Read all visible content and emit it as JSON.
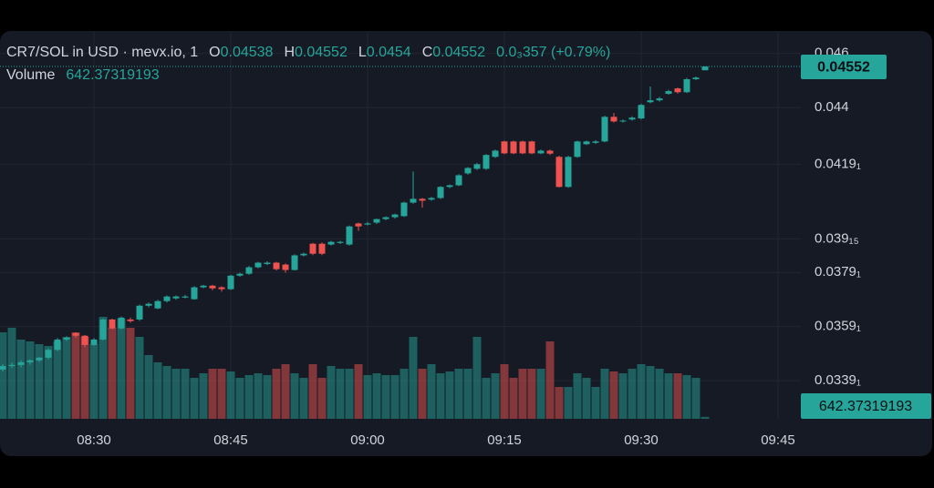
{
  "chart_data": {
    "type": "candlestick",
    "title": "CR7/SOL in USD · mevx.io, 1",
    "ohlc_letters": [
      "O",
      "H",
      "L",
      "C"
    ],
    "change_label": "0.0₃357 (+0.79%)",
    "volume_label": "Volume",
    "up_color": "#26a69a",
    "down_color": "#ef5350",
    "grid": true,
    "x": [
      "08:20",
      "08:21",
      "08:22",
      "08:23",
      "08:24",
      "08:25",
      "08:26",
      "08:27",
      "08:28",
      "08:29",
      "08:30",
      "08:31",
      "08:32",
      "08:33",
      "08:34",
      "08:35",
      "08:36",
      "08:37",
      "08:38",
      "08:39",
      "08:40",
      "08:41",
      "08:42",
      "08:43",
      "08:44",
      "08:45",
      "08:46",
      "08:47",
      "08:48",
      "08:49",
      "08:50",
      "08:51",
      "08:52",
      "08:53",
      "08:54",
      "08:55",
      "08:56",
      "08:57",
      "08:58",
      "08:59",
      "09:00",
      "09:01",
      "09:02",
      "09:03",
      "09:04",
      "09:05",
      "09:06",
      "09:07",
      "09:08",
      "09:09",
      "09:10",
      "09:11",
      "09:12",
      "09:13",
      "09:14",
      "09:15",
      "09:16",
      "09:17",
      "09:18",
      "09:19",
      "09:20",
      "09:21",
      "09:22",
      "09:23",
      "09:24",
      "09:25",
      "09:26",
      "09:27",
      "09:28",
      "09:29",
      "09:30",
      "09:31",
      "09:32",
      "09:33",
      "09:34",
      "09:35",
      "09:36",
      "09:37"
    ],
    "open": [
      0.03432,
      0.03445,
      0.03449,
      0.03459,
      0.03466,
      0.03476,
      0.03505,
      0.03543,
      0.03567,
      0.03557,
      0.03523,
      0.03543,
      0.03617,
      0.03584,
      0.03617,
      0.03617,
      0.03668,
      0.03658,
      0.03685,
      0.03695,
      0.03698,
      0.03692,
      0.03736,
      0.03742,
      0.03736,
      0.03729,
      0.03779,
      0.03786,
      0.0381,
      0.03822,
      0.03827,
      0.0382,
      0.038,
      0.03854,
      0.03897,
      0.03897,
      0.03894,
      0.039,
      0.03894,
      0.03972,
      0.03968,
      0.03975,
      0.03988,
      0.03995,
      0.03999,
      0.04049,
      0.04063,
      0.0406,
      0.04066,
      0.04107,
      0.04113,
      0.04157,
      0.04174,
      0.04174,
      0.04218,
      0.04275,
      0.04275,
      0.04275,
      0.04275,
      0.04231,
      0.04241,
      0.04218,
      0.04107,
      0.04218,
      0.04265,
      0.0427,
      0.04275,
      0.04366,
      0.04349,
      0.04356,
      0.0436,
      0.0442,
      0.04427,
      0.04451,
      0.04471,
      0.04457,
      0.04505,
      0.04538
    ],
    "high": [
      0.03452,
      0.03458,
      0.03466,
      0.0347,
      0.03478,
      0.0351,
      0.03548,
      0.03555,
      0.0357,
      0.0356,
      0.03548,
      0.0362,
      0.0362,
      0.03628,
      0.03624,
      0.03672,
      0.0368,
      0.0369,
      0.03706,
      0.03706,
      0.03708,
      0.0374,
      0.03745,
      0.03745,
      0.0374,
      0.03782,
      0.0379,
      0.03815,
      0.0383,
      0.03832,
      0.0383,
      0.03824,
      0.03858,
      0.03864,
      0.039,
      0.03902,
      0.03908,
      0.03908,
      0.03964,
      0.03975,
      0.03978,
      0.0399,
      0.03998,
      0.04008,
      0.04052,
      0.04164,
      0.04066,
      0.0407,
      0.0411,
      0.04116,
      0.04154,
      0.0418,
      0.04195,
      0.04228,
      0.04245,
      0.04278,
      0.04278,
      0.04278,
      0.04278,
      0.04245,
      0.04245,
      0.04222,
      0.04222,
      0.04278,
      0.04278,
      0.0428,
      0.0437,
      0.0438,
      0.04356,
      0.04368,
      0.04414,
      0.04478,
      0.0444,
      0.04466,
      0.04474,
      0.0451,
      0.04515,
      0.04552
    ],
    "low": [
      0.03425,
      0.03438,
      0.0344,
      0.0345,
      0.0346,
      0.0347,
      0.035,
      0.03538,
      0.0355,
      0.03515,
      0.0352,
      0.0354,
      0.0358,
      0.0358,
      0.03605,
      0.03612,
      0.03662,
      0.03655,
      0.0368,
      0.0369,
      0.03695,
      0.0369,
      0.03732,
      0.03725,
      0.0372,
      0.03726,
      0.03775,
      0.03782,
      0.03806,
      0.03818,
      0.03798,
      0.0379,
      0.03798,
      0.0385,
      0.03855,
      0.03855,
      0.0389,
      0.03896,
      0.0389,
      0.03945,
      0.03965,
      0.0397,
      0.03984,
      0.0399,
      0.03996,
      0.04045,
      0.0403,
      0.04056,
      0.04062,
      0.04102,
      0.0411,
      0.04152,
      0.0417,
      0.0417,
      0.04214,
      0.04228,
      0.04228,
      0.04228,
      0.04228,
      0.04228,
      0.04225,
      0.04105,
      0.04104,
      0.04215,
      0.04262,
      0.04266,
      0.04272,
      0.04345,
      0.04345,
      0.04352,
      0.04356,
      0.04416,
      0.04422,
      0.04448,
      0.04452,
      0.04454,
      0.04502,
      0.0454
    ],
    "close": [
      0.03445,
      0.03449,
      0.03459,
      0.03466,
      0.03476,
      0.03505,
      0.03543,
      0.0355,
      0.03557,
      0.03523,
      0.03543,
      0.03617,
      0.03584,
      0.03624,
      0.03611,
      0.03668,
      0.03675,
      0.03685,
      0.03702,
      0.03702,
      0.03702,
      0.03736,
      0.03742,
      0.03732,
      0.03729,
      0.03779,
      0.03786,
      0.0381,
      0.03827,
      0.03827,
      0.03803,
      0.038,
      0.03854,
      0.0386,
      0.0386,
      0.0386,
      0.03904,
      0.03904,
      0.03961,
      0.03961,
      0.03972,
      0.03988,
      0.03995,
      0.04005,
      0.04049,
      0.04063,
      0.04056,
      0.04066,
      0.04107,
      0.04113,
      0.0415,
      0.04177,
      0.04191,
      0.04225,
      0.04241,
      0.04231,
      0.04231,
      0.04231,
      0.04231,
      0.04241,
      0.0423,
      0.04107,
      0.04218,
      0.04275,
      0.04275,
      0.04275,
      0.04366,
      0.04349,
      0.04352,
      0.04363,
      0.0441,
      0.04427,
      0.04434,
      0.04461,
      0.04457,
      0.04505,
      0.04511,
      0.04552
    ],
    "volume": [
      28500,
      30000,
      26100,
      25500,
      24600,
      24000,
      25500,
      27000,
      28500,
      27000,
      24600,
      33600,
      30000,
      33000,
      30000,
      27000,
      21000,
      18600,
      17400,
      16500,
      16500,
      13500,
      15000,
      16500,
      16500,
      15600,
      13500,
      14400,
      15000,
      14400,
      16500,
      18000,
      15000,
      13500,
      18000,
      13500,
      17400,
      16500,
      16500,
      18000,
      14400,
      15000,
      14400,
      14400,
      16500,
      27000,
      16500,
      18000,
      15000,
      15600,
      16500,
      16500,
      27000,
      13500,
      15000,
      18000,
      13500,
      16500,
      16500,
      16500,
      25500,
      10500,
      10500,
      15000,
      13500,
      10500,
      16500,
      15600,
      15000,
      16500,
      18000,
      17400,
      16500,
      15000,
      15000,
      14400,
      13500,
      642.37319193
    ],
    "xticks": [
      "08:30",
      "08:45",
      "09:00",
      "09:15",
      "09:30",
      "09:45"
    ],
    "ylim": [
      0.0325,
      0.0468
    ],
    "yticks": [
      0.046,
      0.044,
      {
        "value": 0.04191,
        "label": "0.0419₁"
      },
      {
        "value": 0.03915,
        "label": "0.039₁₅"
      },
      {
        "value": 0.03791,
        "label": "0.0379₁"
      },
      {
        "value": 0.03591,
        "label": "0.0359₁"
      },
      {
        "value": 0.03391,
        "label": "0.0339₁"
      }
    ]
  }
}
